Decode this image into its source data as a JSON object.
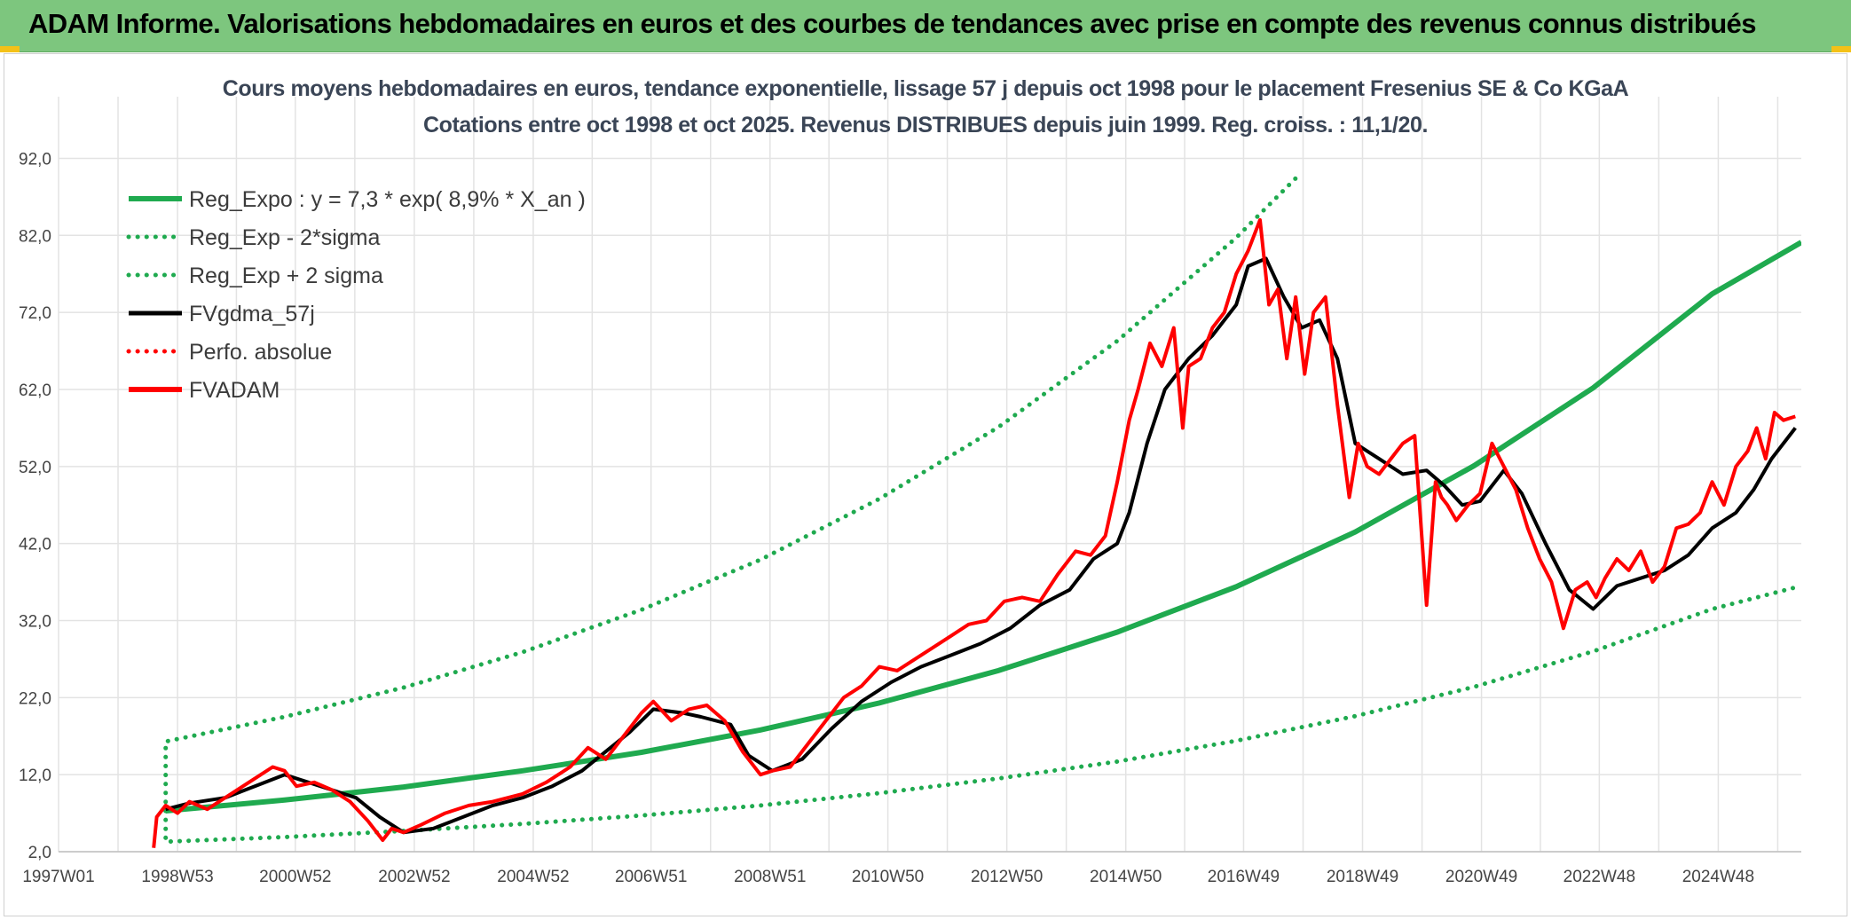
{
  "banner": {
    "title": "ADAM Informe. Valorisations hebdomadaires en euros et des courbes de tendances avec prise en compte des revenus connus distribués"
  },
  "colors": {
    "banner_bg": "#7dc67e",
    "corner_accent": "#f4c118",
    "trend": "#1faa4f",
    "gdma": "#000000",
    "price": "#ff0000",
    "grid": "#e3e3e3"
  },
  "chart_data": {
    "type": "line",
    "title": "Cours moyens hebdomadaires en euros, tendance exponentielle, lissage 57 j depuis oct 1998 pour le placement Fresenius SE & Co KGaA",
    "subtitle": "Cotations entre oct 1998 et oct 2025. Revenus DISTRIBUES depuis juin 1999. Reg. croiss. : 11,1/20.",
    "xlabel": "",
    "ylabel": "",
    "x_ticks": [
      "1997W01",
      "1998W53",
      "2000W52",
      "2002W52",
      "2004W52",
      "2006W51",
      "2008W51",
      "2010W50",
      "2012W50",
      "2014W50",
      "2016W49",
      "2018W49",
      "2020W49",
      "2022W48",
      "2024W48"
    ],
    "x_range": [
      1997.0,
      2026.3
    ],
    "y_ticks": [
      "2,0",
      "12,0",
      "22,0",
      "32,0",
      "42,0",
      "52,0",
      "62,0",
      "72,0",
      "82,0",
      "92,0"
    ],
    "ylim": [
      2,
      100
    ],
    "grid": true,
    "legend_position": "top-left",
    "legend": [
      {
        "name": "Reg_Expo : y = 7,3 * exp( 8,9% *  X_an )",
        "style": "solid-thick",
        "color": "#1faa4f"
      },
      {
        "name": "Reg_Exp - 2*sigma",
        "style": "dotted",
        "color": "#1faa4f"
      },
      {
        "name": "Reg_Exp + 2 sigma",
        "style": "dotted",
        "color": "#1faa4f"
      },
      {
        "name": "FVgdma_57j",
        "style": "solid",
        "color": "#000000"
      },
      {
        "name": "Perfo. absolue",
        "style": "dotted",
        "color": "#ff0000"
      },
      {
        "name": "FVADAM",
        "style": "solid-thick",
        "color": "#ff0000"
      }
    ],
    "series": [
      {
        "name": "Reg_Expo : y = 7,3 * exp( 8,9% *  X_an )",
        "kind": "trend",
        "x": [
          1998.8,
          2000.8,
          2002.8,
          2004.8,
          2006.8,
          2008.8,
          2010.8,
          2012.8,
          2014.8,
          2016.8,
          2018.8,
          2020.8,
          2022.8,
          2024.8,
          2026.3
        ],
        "y": [
          7.3,
          8.7,
          10.4,
          12.5,
          14.9,
          17.8,
          21.3,
          25.5,
          30.5,
          36.4,
          43.5,
          52.1,
          62.2,
          74.4,
          81.1
        ]
      },
      {
        "name": "Reg_Exp - 2*sigma",
        "kind": "band-low",
        "x": [
          1998.8,
          2000.8,
          2002.8,
          2004.8,
          2006.8,
          2008.8,
          2010.8,
          2012.8,
          2014.8,
          2016.8,
          2018.8,
          2020.8,
          2022.8,
          2024.8,
          2026.3
        ],
        "y": [
          3.3,
          3.9,
          4.7,
          5.6,
          6.7,
          8.0,
          9.6,
          11.5,
          13.7,
          16.4,
          19.6,
          23.4,
          28.0,
          33.5,
          36.5
        ]
      },
      {
        "name": "Reg_Exp + 2 sigma",
        "kind": "band-high",
        "x": [
          1998.8,
          2000.8,
          2002.8,
          2004.8,
          2006.8,
          2008.8,
          2010.8,
          2012.8,
          2014.8,
          2016.8,
          2017.8
        ],
        "y": [
          16.3,
          19.5,
          23.3,
          27.9,
          33.4,
          39.9,
          47.8,
          57.1,
          68.3,
          81.7,
          89.4
        ]
      },
      {
        "name": "FVgdma_57j",
        "kind": "smooth",
        "x": [
          1998.8,
          1999.2,
          1999.8,
          2000.3,
          2000.8,
          2001.2,
          2001.6,
          2002.0,
          2002.4,
          2002.8,
          2003.3,
          2003.8,
          2004.3,
          2004.8,
          2005.3,
          2005.8,
          2006.2,
          2006.6,
          2007.0,
          2007.5,
          2007.8,
          2008.3,
          2008.6,
          2009.0,
          2009.5,
          2010.0,
          2010.5,
          2011.0,
          2011.5,
          2012.0,
          2012.5,
          2013.0,
          2013.5,
          2014.0,
          2014.4,
          2014.8,
          2015.0,
          2015.3,
          2015.6,
          2016.0,
          2016.4,
          2016.8,
          2017.0,
          2017.3,
          2017.6,
          2017.9,
          2018.2,
          2018.5,
          2018.8,
          2019.2,
          2019.6,
          2020.0,
          2020.3,
          2020.6,
          2020.9,
          2021.3,
          2021.6,
          2022.0,
          2022.4,
          2022.8,
          2023.2,
          2023.6,
          2024.0,
          2024.4,
          2024.8,
          2025.2,
          2025.5,
          2025.8,
          2026.2
        ],
        "y": [
          7.5,
          8.3,
          9.0,
          10.5,
          12.0,
          11.0,
          10.0,
          9.0,
          6.5,
          4.5,
          5.0,
          6.5,
          8.0,
          9.0,
          10.5,
          12.5,
          15.0,
          17.5,
          20.5,
          20.0,
          19.5,
          18.5,
          14.5,
          12.5,
          14.0,
          18.0,
          21.5,
          24.0,
          26.0,
          27.5,
          29.0,
          31.0,
          34.0,
          36.0,
          40.0,
          42.0,
          46.0,
          55.0,
          62.0,
          66.0,
          69.0,
          73.0,
          78.0,
          79.0,
          74.0,
          70.0,
          71.0,
          66.0,
          55.0,
          53.0,
          51.0,
          51.5,
          49.5,
          47.0,
          47.5,
          51.5,
          48.5,
          42.0,
          36.0,
          33.5,
          36.5,
          37.5,
          38.5,
          40.5,
          44.0,
          46.0,
          49.0,
          53.0,
          57.0
        ]
      },
      {
        "name": "FVADAM",
        "kind": "price",
        "x": [
          1998.6,
          1998.65,
          1998.8,
          1999.0,
          1999.2,
          1999.5,
          1999.8,
          2000.1,
          2000.4,
          2000.6,
          2000.8,
          2001.0,
          2001.3,
          2001.6,
          2001.9,
          2002.2,
          2002.45,
          2002.6,
          2002.8,
          2003.1,
          2003.5,
          2003.9,
          2004.3,
          2004.8,
          2005.2,
          2005.6,
          2005.9,
          2006.2,
          2006.5,
          2006.8,
          2007.0,
          2007.3,
          2007.6,
          2007.9,
          2008.2,
          2008.5,
          2008.8,
          2009.0,
          2009.3,
          2009.6,
          2009.9,
          2010.2,
          2010.5,
          2010.8,
          2011.1,
          2011.4,
          2011.7,
          2012.0,
          2012.3,
          2012.6,
          2012.9,
          2013.2,
          2013.5,
          2013.8,
          2014.1,
          2014.35,
          2014.6,
          2014.8,
          2015.0,
          2015.15,
          2015.35,
          2015.55,
          2015.75,
          2015.9,
          2016.0,
          2016.2,
          2016.4,
          2016.6,
          2016.8,
          2017.0,
          2017.2,
          2017.35,
          2017.5,
          2017.65,
          2017.8,
          2017.95,
          2018.1,
          2018.3,
          2018.5,
          2018.7,
          2018.85,
          2019.0,
          2019.2,
          2019.4,
          2019.6,
          2019.8,
          2020.0,
          2020.15,
          2020.25,
          2020.35,
          2020.5,
          2020.7,
          2020.9,
          2021.1,
          2021.3,
          2021.5,
          2021.7,
          2021.9,
          2022.1,
          2022.3,
          2022.5,
          2022.7,
          2022.85,
          2023.0,
          2023.2,
          2023.4,
          2023.6,
          2023.8,
          2024.0,
          2024.2,
          2024.4,
          2024.6,
          2024.8,
          2025.0,
          2025.2,
          2025.4,
          2025.55,
          2025.7,
          2025.85,
          2026.0,
          2026.2
        ],
        "y": [
          2.5,
          6.5,
          8.0,
          7.0,
          8.5,
          7.5,
          9.0,
          10.5,
          12.0,
          13.0,
          12.5,
          10.5,
          11.0,
          10.0,
          8.5,
          6.0,
          3.5,
          5.0,
          4.5,
          5.5,
          7.0,
          8.0,
          8.5,
          9.5,
          11.0,
          13.0,
          15.5,
          14.0,
          17.0,
          20.0,
          21.5,
          19.0,
          20.5,
          21.0,
          19.0,
          15.0,
          12.0,
          12.5,
          13.0,
          16.0,
          19.0,
          22.0,
          23.5,
          26.0,
          25.5,
          27.0,
          28.5,
          30.0,
          31.5,
          32.0,
          34.5,
          35.0,
          34.5,
          38.0,
          41.0,
          40.5,
          43.0,
          50.0,
          58.0,
          62.0,
          68.0,
          65.0,
          70.0,
          57.0,
          65.0,
          66.0,
          70.0,
          72.0,
          77.0,
          80.0,
          84.0,
          73.0,
          75.0,
          66.0,
          74.0,
          64.0,
          72.0,
          74.0,
          60.0,
          48.0,
          55.0,
          52.0,
          51.0,
          53.0,
          55.0,
          56.0,
          34.0,
          50.0,
          48.0,
          47.0,
          45.0,
          47.0,
          48.5,
          55.0,
          52.0,
          49.0,
          44.0,
          40.0,
          37.0,
          31.0,
          36.0,
          37.0,
          35.0,
          37.5,
          40.0,
          38.5,
          41.0,
          37.0,
          39.0,
          44.0,
          44.5,
          46.0,
          50.0,
          47.0,
          52.0,
          54.0,
          57.0,
          53.0,
          59.0,
          58.0,
          58.5
        ]
      }
    ]
  }
}
